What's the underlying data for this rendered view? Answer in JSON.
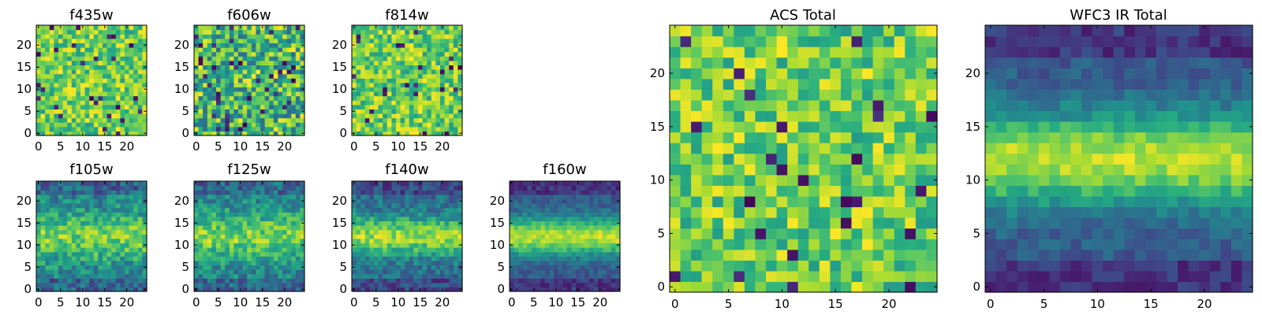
{
  "chart_data": [
    {
      "type": "heatmap",
      "title": "f435w",
      "xticks": [
        "0",
        "5",
        "10",
        "15",
        "20"
      ],
      "yticks": [
        "0",
        "5",
        "10",
        "15",
        "20"
      ],
      "grid_size": [
        25,
        25
      ],
      "colormap": "viridis",
      "pattern": "noise_high",
      "seed": 11
    },
    {
      "type": "heatmap",
      "title": "f606w",
      "xticks": [
        "0",
        "5",
        "10",
        "15",
        "20"
      ],
      "yticks": [
        "0",
        "5",
        "10",
        "15",
        "20"
      ],
      "grid_size": [
        25,
        25
      ],
      "colormap": "viridis",
      "pattern": "noise_mixed",
      "seed": 23
    },
    {
      "type": "heatmap",
      "title": "f814w",
      "xticks": [
        "0",
        "5",
        "10",
        "15",
        "20"
      ],
      "yticks": [
        "0",
        "5",
        "10",
        "15",
        "20"
      ],
      "grid_size": [
        25,
        25
      ],
      "colormap": "viridis",
      "pattern": "noise_high",
      "seed": 37
    },
    {
      "type": "heatmap",
      "title": "f105w",
      "xticks": [
        "0",
        "5",
        "10",
        "15",
        "20"
      ],
      "yticks": [
        "0",
        "5",
        "10",
        "15",
        "20"
      ],
      "grid_size": [
        25,
        25
      ],
      "colormap": "viridis",
      "pattern": "band_weak",
      "band_center_row": 12,
      "seed": 41
    },
    {
      "type": "heatmap",
      "title": "f125w",
      "xticks": [
        "0",
        "5",
        "10",
        "15",
        "20"
      ],
      "yticks": [
        "0",
        "5",
        "10",
        "15",
        "20"
      ],
      "grid_size": [
        25,
        25
      ],
      "colormap": "viridis",
      "pattern": "band_weak",
      "band_center_row": 12,
      "seed": 53
    },
    {
      "type": "heatmap",
      "title": "f140w",
      "xticks": [
        "0",
        "5",
        "10",
        "15",
        "20"
      ],
      "yticks": [
        "0",
        "5",
        "10",
        "15",
        "20"
      ],
      "grid_size": [
        25,
        25
      ],
      "colormap": "viridis",
      "pattern": "band_medium",
      "band_center_row": 12,
      "seed": 67
    },
    {
      "type": "heatmap",
      "title": "f160w",
      "xticks": [
        "0",
        "5",
        "10",
        "15",
        "20"
      ],
      "yticks": [
        "0",
        "5",
        "10",
        "15",
        "20"
      ],
      "grid_size": [
        25,
        25
      ],
      "colormap": "viridis",
      "pattern": "band_strong",
      "band_center_row": 12,
      "seed": 71
    },
    {
      "type": "heatmap",
      "title": "ACS Total",
      "xticks": [
        "0",
        "5",
        "10",
        "15",
        "20"
      ],
      "yticks": [
        "0",
        "5",
        "10",
        "15",
        "20"
      ],
      "grid_size": [
        25,
        25
      ],
      "colormap": "viridis",
      "pattern": "noise_high",
      "seed": 83
    },
    {
      "type": "heatmap",
      "title": "WFC3 IR Total",
      "xticks": [
        "0",
        "5",
        "10",
        "15",
        "20"
      ],
      "yticks": [
        "0",
        "5",
        "10",
        "15",
        "20"
      ],
      "grid_size": [
        25,
        25
      ],
      "colormap": "viridis",
      "pattern": "band_strong",
      "band_center_row": 12,
      "seed": 97
    }
  ]
}
